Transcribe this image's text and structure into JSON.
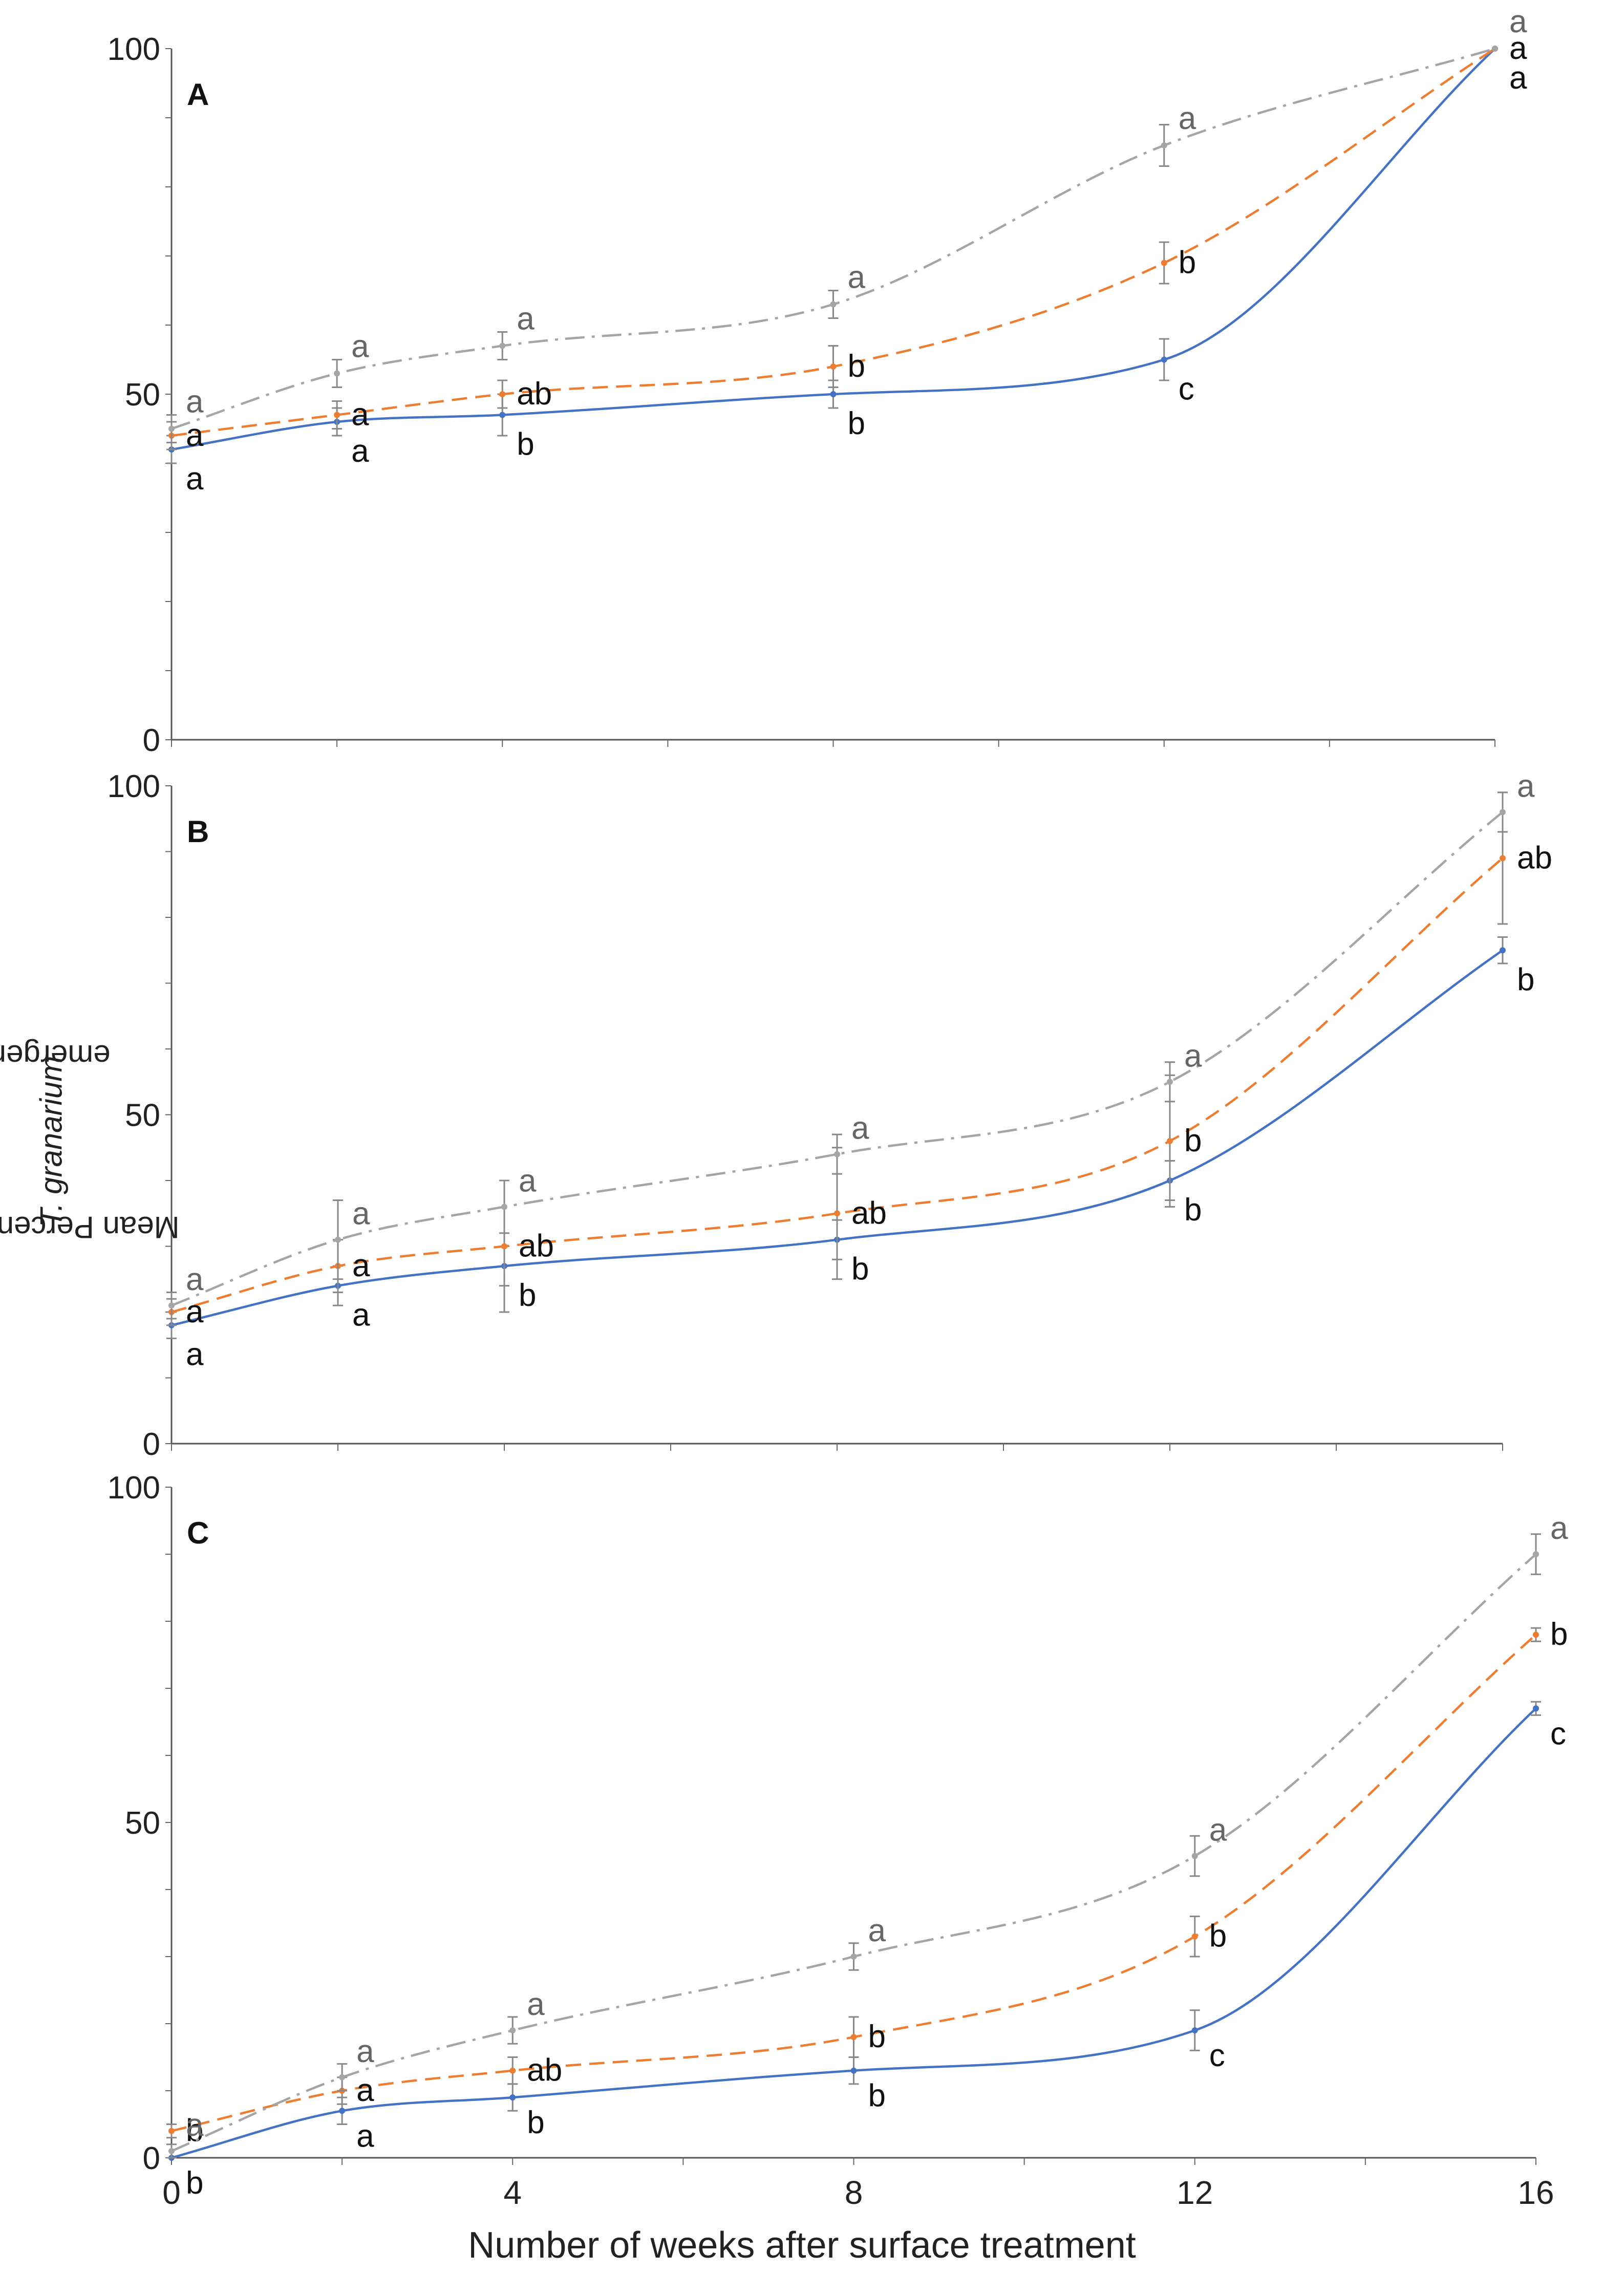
{
  "figure": {
    "ylabel_prefix": "Mean Percentages of ",
    "ylabel_italic": "T. granarium",
    "ylabel_suffix": " emergence",
    "xlabel": "Number of weeks after surface treatment"
  },
  "chart_data": [
    {
      "type": "line",
      "panel": "A",
      "title": "A",
      "x": [
        0,
        2,
        4,
        8,
        12,
        16
      ],
      "xlim": [
        0,
        16
      ],
      "ylim": [
        0,
        100
      ],
      "yticks": [
        0,
        50,
        100
      ],
      "xtick_labels": [],
      "grid": false,
      "series": [
        {
          "name": "series-solid-blue",
          "color": "#4472c4",
          "dash": "solid",
          "values": [
            42,
            46,
            47,
            50,
            55,
            100
          ],
          "errors": [
            2,
            2,
            3,
            2,
            3,
            0
          ],
          "letters": [
            "a",
            "a",
            "b",
            "b",
            "c",
            "a"
          ]
        },
        {
          "name": "series-dashed-orange",
          "color": "#ed7d31",
          "dash": "dashed",
          "values": [
            44,
            47,
            50,
            54,
            69,
            100
          ],
          "errors": [
            2,
            2,
            2,
            3,
            3,
            0
          ],
          "letters": [
            "a",
            "a",
            "ab",
            "b",
            "b",
            "a"
          ]
        },
        {
          "name": "series-dashdot-gray",
          "color": "#a5a5a5",
          "dash": "dashdot",
          "values": [
            45,
            53,
            57,
            63,
            86,
            100
          ],
          "errors": [
            2,
            2,
            2,
            2,
            3,
            0
          ],
          "letters": [
            "a",
            "a",
            "a",
            "a",
            "a",
            "a"
          ]
        }
      ]
    },
    {
      "type": "line",
      "panel": "B",
      "title": "B",
      "x": [
        0,
        2,
        4,
        8,
        12,
        16
      ],
      "xlim": [
        0,
        16
      ],
      "ylim": [
        0,
        100
      ],
      "yticks": [
        0,
        50,
        100
      ],
      "xtick_labels": [],
      "grid": false,
      "series": [
        {
          "name": "series-solid-blue",
          "color": "#4472c4",
          "dash": "solid",
          "values": [
            18,
            24,
            27,
            31,
            40,
            75
          ],
          "errors": [
            2,
            3,
            3,
            3,
            3,
            2
          ],
          "letters": [
            "a",
            "a",
            "b",
            "b",
            "b",
            "b"
          ]
        },
        {
          "name": "series-dashed-orange",
          "color": "#ed7d31",
          "dash": "dashed",
          "values": [
            20,
            27,
            30,
            35,
            46,
            89
          ],
          "errors": [
            2,
            4,
            10,
            10,
            10,
            10
          ],
          "letters": [
            "a",
            "a",
            "ab",
            "ab",
            "b",
            "ab"
          ]
        },
        {
          "name": "series-dashdot-gray",
          "color": "#a5a5a5",
          "dash": "dashdot",
          "values": [
            21,
            31,
            36,
            44,
            55,
            96
          ],
          "errors": [
            2,
            6,
            4,
            3,
            3,
            3
          ],
          "letters": [
            "a",
            "a",
            "a",
            "a",
            "a",
            "a"
          ]
        }
      ]
    },
    {
      "type": "line",
      "panel": "C",
      "title": "C",
      "x": [
        0,
        2,
        4,
        8,
        12,
        16
      ],
      "xlim": [
        0,
        16
      ],
      "ylim": [
        0,
        100
      ],
      "yticks": [
        0,
        50,
        100
      ],
      "xtick_labels": [
        "0",
        "4",
        "8",
        "12",
        "16"
      ],
      "xtick_values": [
        0,
        4,
        8,
        12,
        16
      ],
      "grid": false,
      "series": [
        {
          "name": "series-solid-blue",
          "color": "#4472c4",
          "dash": "solid",
          "values": [
            0,
            7,
            9,
            13,
            19,
            67
          ],
          "errors": [
            0,
            2,
            2,
            2,
            3,
            1
          ],
          "letters": [
            "b",
            "a",
            "b",
            "b",
            "c",
            "c"
          ]
        },
        {
          "name": "series-dashed-orange",
          "color": "#ed7d31",
          "dash": "dashed",
          "values": [
            4,
            10,
            13,
            18,
            33,
            78
          ],
          "errors": [
            1,
            2,
            2,
            3,
            3,
            1
          ],
          "letters": [
            "b",
            "a",
            "ab",
            "b",
            "b",
            "b"
          ]
        },
        {
          "name": "series-dashdot-gray",
          "color": "#a5a5a5",
          "dash": "dashdot",
          "values": [
            1,
            12,
            19,
            30,
            45,
            90
          ],
          "errors": [
            1,
            2,
            2,
            2,
            3,
            3
          ],
          "letters": [
            "a",
            "a",
            "a",
            "a",
            "a",
            "a"
          ]
        }
      ]
    }
  ]
}
